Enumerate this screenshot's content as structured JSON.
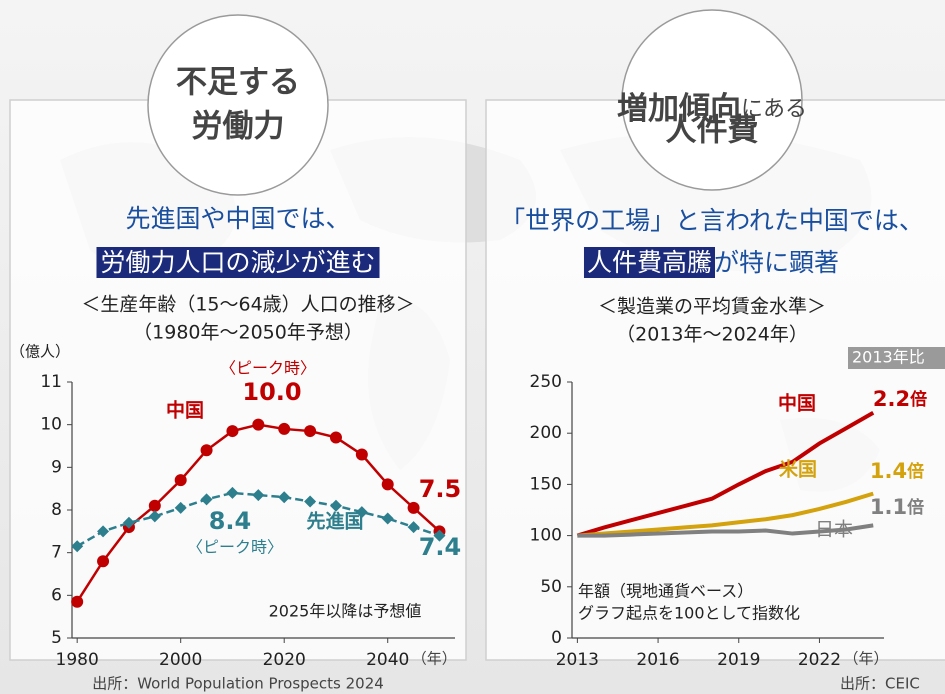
{
  "chart_data": [
    {
      "type": "line",
      "badge": [
        "不足する",
        "労働力"
      ],
      "headline": "先進国や中国では、",
      "highlight": "労働力人口の減少が進む",
      "title": "＜生産年齢（15～64歳）人口の推移＞",
      "subtitle": "（1980年～2050年予想）",
      "ylabel": "（億人）",
      "xunit": "（年）",
      "note": "2025年以降は予想値",
      "source": "出所：World Population Prospects 2024",
      "x": [
        1980,
        1985,
        1990,
        1995,
        2000,
        2005,
        2010,
        2015,
        2020,
        2025,
        2030,
        2035,
        2040,
        2045,
        2050
      ],
      "xlim": [
        1979,
        2053
      ],
      "xticks": [
        1980,
        2000,
        2020,
        2040
      ],
      "ylim": [
        5,
        11
      ],
      "yticks": [
        5,
        6,
        7,
        8,
        9,
        10,
        11
      ],
      "series": [
        {
          "name": "中国",
          "color": "#c00000",
          "marker": "circle",
          "values": [
            5.85,
            6.8,
            7.6,
            8.1,
            8.7,
            9.4,
            9.85,
            10.0,
            9.9,
            9.85,
            9.7,
            9.3,
            8.6,
            8.05,
            7.5
          ],
          "value_labels": [
            null,
            null,
            null,
            null,
            null,
            null,
            null,
            "10.0",
            null,
            null,
            null,
            null,
            null,
            null,
            "7.5"
          ],
          "peak_note": "〈ピーク時〉"
        },
        {
          "name": "先進国",
          "color": "#2e7f8e",
          "marker": "diamond",
          "values": [
            7.15,
            7.5,
            7.7,
            7.85,
            8.05,
            8.25,
            8.4,
            8.35,
            8.3,
            8.2,
            8.1,
            7.95,
            7.8,
            7.6,
            7.4
          ],
          "value_labels": [
            null,
            null,
            null,
            null,
            null,
            null,
            "8.4",
            null,
            null,
            null,
            null,
            null,
            null,
            null,
            "7.4"
          ],
          "peak_note": "〈ピーク時〉"
        }
      ]
    },
    {
      "type": "line",
      "badge_main": "増加傾向",
      "badge_small": "にある",
      "badge_line2": "人件費",
      "headline": "「世界の工場」と言われた中国では、",
      "highlight": "人件費高騰",
      "highlight_after": "が特に顕著",
      "title": "＜製造業の平均賃金水準＞",
      "subtitle": "（2013年～2024年）",
      "tag": "2013年比",
      "xunit": "（年）",
      "notes": [
        "年額（現地通貨ベース）",
        "グラフ起点を100として指数化"
      ],
      "source": "出所：CEIC",
      "x": [
        2013,
        2014,
        2015,
        2016,
        2017,
        2018,
        2019,
        2020,
        2021,
        2022,
        2023,
        2024
      ],
      "xlim": [
        2012.8,
        2024.4
      ],
      "xticks": [
        2013,
        2016,
        2019,
        2022
      ],
      "ylim": [
        0,
        250
      ],
      "yticks": [
        0,
        50,
        100,
        150,
        200,
        250
      ],
      "series": [
        {
          "name": "中国",
          "color": "#c00000",
          "values": [
            100,
            108,
            115,
            122,
            129,
            136,
            150,
            163,
            172,
            190,
            205,
            220
          ],
          "end_num": "2.2",
          "end_unit": "倍"
        },
        {
          "name": "米国",
          "color": "#d4a20c",
          "values": [
            100,
            102,
            104,
            106,
            108,
            110,
            113,
            116,
            120,
            126,
            133,
            141
          ],
          "end_num": "1.4",
          "end_unit": "倍"
        },
        {
          "name": "日本",
          "color": "#808080",
          "values": [
            100,
            100,
            101,
            102,
            103,
            104,
            104,
            105,
            102,
            104,
            106,
            110
          ],
          "end_num": "1.1",
          "end_unit": "倍"
        }
      ]
    }
  ]
}
